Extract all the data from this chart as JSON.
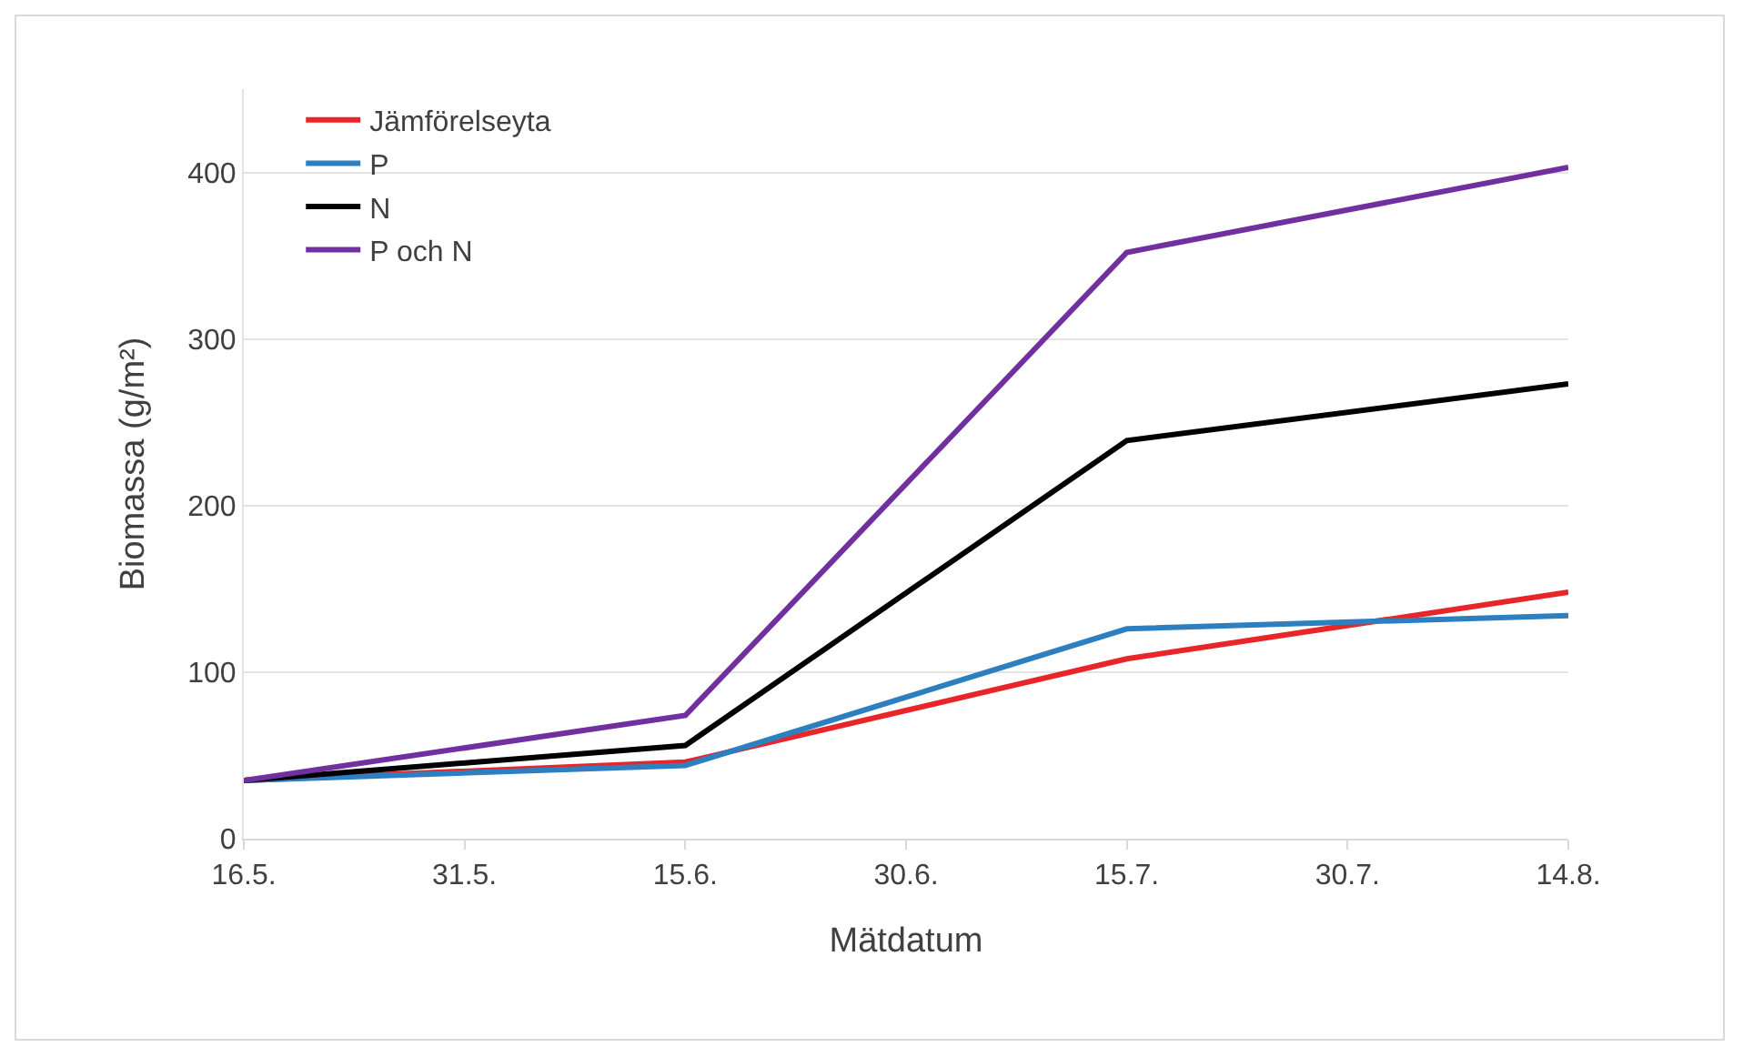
{
  "chart_data": {
    "type": "line",
    "xlabel": "Mätdatum",
    "ylabel": "Biomassa (g/m²)",
    "x": [
      "--05-16",
      "--06-15",
      "--07-15",
      "--08-14"
    ],
    "series": [
      {
        "name": "Jämförelseyta",
        "color": "#e8262a",
        "values": [
          35,
          46,
          108,
          148
        ]
      },
      {
        "name": "P",
        "color": "#2e7fc0",
        "values": [
          35,
          44,
          126,
          134
        ]
      },
      {
        "name": "N",
        "color": "#000000",
        "values": [
          35,
          56,
          239,
          273
        ]
      },
      {
        "name": "P och N",
        "color": "#7030a0",
        "values": [
          35,
          74,
          352,
          403
        ]
      }
    ],
    "xlim": [
      "--05-16",
      "--08-14"
    ],
    "xticks": [
      {
        "value": "--05-16",
        "label": "16.5."
      },
      {
        "value": "--05-31",
        "label": "31.5."
      },
      {
        "value": "--06-15",
        "label": "15.6."
      },
      {
        "value": "--06-30",
        "label": "30.6."
      },
      {
        "value": "--07-15",
        "label": "15.7."
      },
      {
        "value": "--07-30",
        "label": "30.7."
      },
      {
        "value": "--08-14",
        "label": "14.8."
      }
    ],
    "ylim": [
      0,
      450
    ],
    "yticks": [
      0,
      100,
      200,
      300,
      400
    ],
    "grid": "y",
    "legend": "top left",
    "marker": "none",
    "line_style": "solid"
  }
}
